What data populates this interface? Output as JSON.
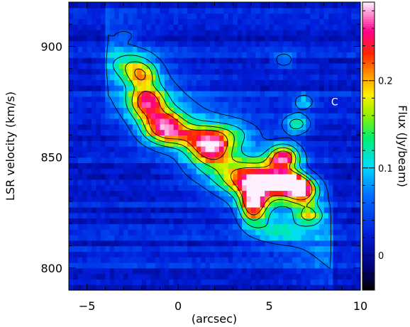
{
  "chart_data": {
    "type": "heatmap",
    "xlabel": "(arcsec)",
    "ylabel": "LSR velocity (km/s)",
    "colorbar_label": "Flux (Jy/beam)",
    "xlim": [
      -6,
      10
    ],
    "ylim": [
      790,
      920
    ],
    "clim": [
      -0.04,
      0.29
    ],
    "xticks": [
      -5,
      0,
      5,
      10
    ],
    "yticks": [
      800,
      850,
      900
    ],
    "colorbar_ticks": [
      0,
      0.1,
      0.2
    ],
    "x_tick_labels": [
      "−5",
      "0",
      "5",
      "10"
    ],
    "y_tick_labels": [
      "800",
      "850",
      "900"
    ],
    "colorbar_tick_labels": [
      "0",
      "0.1",
      "0.2"
    ],
    "annotations": [
      {
        "text": "C",
        "x": 8.4,
        "y": 875
      }
    ],
    "contour_levels": [
      0.06,
      0.11,
      0.16,
      0.21
    ],
    "emission_peaks": [
      {
        "x": -2.6,
        "y": 892,
        "flux": 0.1,
        "sx": 0.8,
        "sy": 4
      },
      {
        "x": -2.0,
        "y": 887,
        "flux": 0.15,
        "sx": 0.6,
        "sy": 4
      },
      {
        "x": -1.7,
        "y": 875,
        "flux": 0.21,
        "sx": 0.7,
        "sy": 5
      },
      {
        "x": -0.8,
        "y": 864,
        "flux": 0.23,
        "sx": 0.8,
        "sy": 5
      },
      {
        "x": 0.6,
        "y": 860,
        "flux": 0.12,
        "sx": 1.0,
        "sy": 4
      },
      {
        "x": 1.8,
        "y": 855,
        "flux": 0.23,
        "sx": 0.8,
        "sy": 5
      },
      {
        "x": 3.0,
        "y": 861,
        "flux": 0.09,
        "sx": 1.0,
        "sy": 4
      },
      {
        "x": 3.8,
        "y": 840,
        "flux": 0.19,
        "sx": 1.0,
        "sy": 5
      },
      {
        "x": 4.1,
        "y": 829,
        "flux": 0.24,
        "sx": 0.5,
        "sy": 6
      },
      {
        "x": 5.1,
        "y": 838,
        "flux": 0.16,
        "sx": 0.8,
        "sy": 6
      },
      {
        "x": 5.8,
        "y": 850,
        "flux": 0.24,
        "sx": 0.6,
        "sy": 4
      },
      {
        "x": 6.0,
        "y": 839,
        "flux": 0.29,
        "sx": 0.6,
        "sy": 3
      },
      {
        "x": 6.8,
        "y": 835,
        "flux": 0.25,
        "sx": 0.6,
        "sy": 4
      },
      {
        "x": 6.5,
        "y": 865,
        "flux": 0.14,
        "sx": 0.5,
        "sy": 3
      },
      {
        "x": 6.9,
        "y": 875,
        "flux": 0.1,
        "sx": 0.4,
        "sy": 2.5
      },
      {
        "x": 5.8,
        "y": 894,
        "flux": 0.09,
        "sx": 0.4,
        "sy": 2.5
      },
      {
        "x": 7.2,
        "y": 824,
        "flux": 0.14,
        "sx": 0.5,
        "sy": 3
      },
      {
        "x": 5.4,
        "y": 817,
        "flux": 0.08,
        "sx": 1.0,
        "sy": 4
      },
      {
        "x": 2.2,
        "y": 845,
        "flux": 0.08,
        "sx": 1.2,
        "sy": 5
      },
      {
        "x": -2.9,
        "y": 905,
        "flux": 0.06,
        "sx": 0.3,
        "sy": 1.5
      }
    ]
  }
}
